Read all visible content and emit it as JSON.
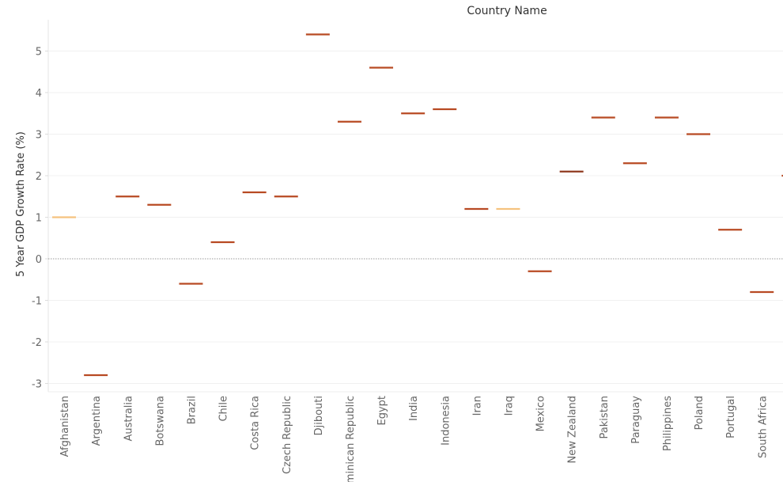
{
  "chart_data": {
    "type": "scatter",
    "mark": "dash",
    "title": "Country Name",
    "xlabel": "",
    "ylabel": "5 Year GDP Growth Rate (%)",
    "ylim": [
      -3.2,
      5.8
    ],
    "yticks": [
      -3,
      -2,
      -1,
      0,
      1,
      2,
      3,
      4,
      5
    ],
    "zero_line": true,
    "grid": true,
    "categories": [
      "Afghanistan",
      "Argentina",
      "Australia",
      "Botswana",
      "Brazil",
      "Chile",
      "Costa Rica",
      "Czech Republic",
      "Djibouti",
      "Dominican Republic",
      "Egypt",
      "India",
      "Indonesia",
      "Iran",
      "Iraq",
      "Mexico",
      "New Zealand",
      "Pakistan",
      "Paraguay",
      "Philippines",
      "Poland",
      "Portugal",
      "South Africa",
      ""
    ],
    "values": [
      1.0,
      -2.8,
      1.5,
      1.3,
      -0.6,
      0.4,
      1.6,
      1.5,
      5.4,
      3.3,
      4.6,
      3.5,
      3.6,
      1.2,
      1.2,
      -0.3,
      2.1,
      3.4,
      2.3,
      3.4,
      3.0,
      0.7,
      -0.8,
      2.0
    ],
    "colors": [
      "#f5c27f",
      "#b84a23",
      "#b84a23",
      "#b84a23",
      "#b84a23",
      "#b84a23",
      "#b84a23",
      "#b84a23",
      "#b84a23",
      "#b84a23",
      "#b84a23",
      "#b84a23",
      "#b84a23",
      "#b84a23",
      "#f5c27f",
      "#b84a23",
      "#8f3a1f",
      "#b84a23",
      "#b84a23",
      "#b84a23",
      "#b84a23",
      "#b84a23",
      "#b84a23",
      "#b84a23"
    ]
  }
}
